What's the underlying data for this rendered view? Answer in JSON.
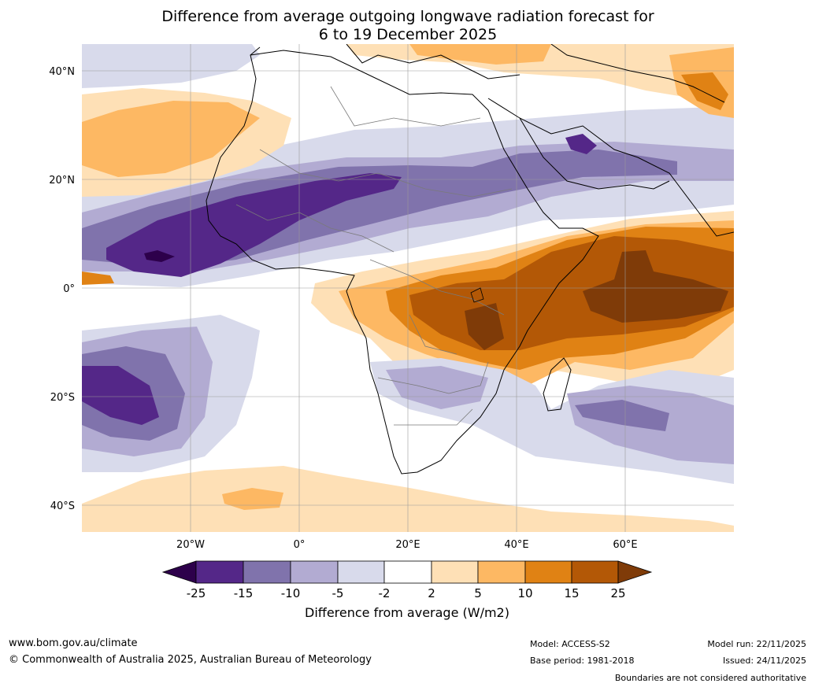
{
  "title": {
    "line1": "Difference from average outgoing longwave radiation forecast for",
    "line2": "6 to 19 December 2025"
  },
  "map": {
    "lat_ticks": [
      "40°N",
      "20°N",
      "0°",
      "20°S",
      "40°S"
    ],
    "lon_ticks": [
      "20°W",
      "0°",
      "20°E",
      "40°E",
      "60°E"
    ]
  },
  "colorbar": {
    "title": "Difference from average (W/m2)",
    "labels": [
      "-25",
      "-15",
      "-10",
      "-5",
      "-2",
      "2",
      "5",
      "10",
      "15",
      "25"
    ],
    "colors": {
      "extend_low": "#2d004b",
      "c1": "#542788",
      "c2": "#8073ac",
      "c3": "#b2abd2",
      "c4": "#d8daeb",
      "c5": "#ffffff",
      "c6": "#fee0b6",
      "c7": "#fdb863",
      "c8": "#e08214",
      "c9": "#b35806",
      "extend_high": "#7f3b08"
    }
  },
  "footer": {
    "website": "www.bom.gov.au/climate",
    "copyright": "© Commonwealth of Australia 2025, Australian Bureau of Meteorology",
    "model": "Model: ACCESS-S2",
    "base_period": "Base period: 1981-2018",
    "model_run": "Model run: 22/11/2025",
    "issued": "Issued: 24/11/2025",
    "disclaimer": "Boundaries are not considered authoritative"
  }
}
